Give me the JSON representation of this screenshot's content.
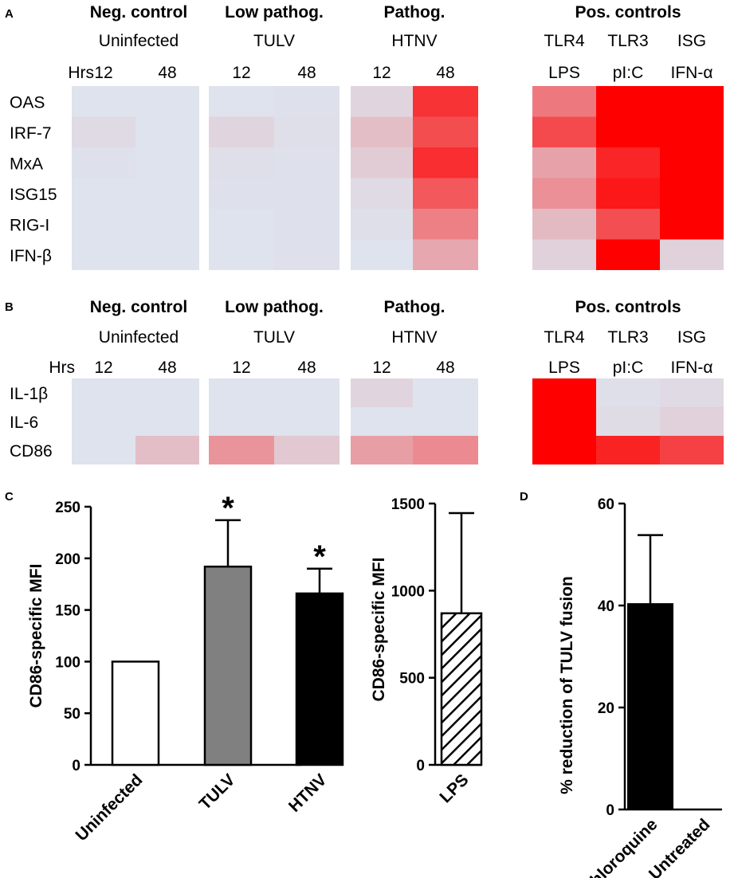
{
  "chart_data": [
    {
      "panel": "A",
      "type": "heatmap",
      "columns": [
        {
          "group": "Neg. control",
          "condition": "Uninfected",
          "hrs": [
            "12",
            "48"
          ]
        },
        {
          "group": "Low pathog.",
          "condition": "TULV",
          "hrs": [
            "12",
            "48"
          ]
        },
        {
          "group": "Pathog.",
          "condition": "HTNV",
          "hrs": [
            "12",
            "48"
          ]
        },
        {
          "group": "Pos. controls",
          "receptors": [
            "TLR4",
            "TLR3",
            "ISG"
          ],
          "stimuli": [
            "LPS",
            "pI:C",
            "IFN-α"
          ]
        }
      ],
      "hrs_label": "Hrs",
      "rows": [
        "OAS",
        "IRF-7",
        "MxA",
        "ISG15",
        "RIG-I",
        "IFN-β"
      ],
      "values": [
        [
          0.02,
          0.02,
          0.02,
          0.03,
          0.08,
          0.78,
          0.48,
          1.0,
          1.0
        ],
        [
          0.06,
          0.02,
          0.08,
          0.04,
          0.18,
          0.67,
          0.68,
          1.0,
          1.0
        ],
        [
          0.03,
          0.02,
          0.04,
          0.03,
          0.12,
          0.8,
          0.3,
          0.84,
          1.0
        ],
        [
          0.02,
          0.02,
          0.03,
          0.03,
          0.06,
          0.62,
          0.38,
          0.9,
          1.0
        ],
        [
          0.02,
          0.02,
          0.02,
          0.03,
          0.04,
          0.45,
          0.2,
          0.66,
          1.0
        ],
        [
          0.02,
          0.02,
          0.02,
          0.03,
          0.02,
          0.28,
          0.1,
          1.0,
          0.1
        ]
      ]
    },
    {
      "panel": "B",
      "type": "heatmap",
      "columns": [
        {
          "group": "Neg. control",
          "condition": "Uninfected",
          "hrs": [
            "12",
            "48"
          ]
        },
        {
          "group": "Low pathog.",
          "condition": "TULV",
          "hrs": [
            "12",
            "48"
          ]
        },
        {
          "group": "Pathog.",
          "condition": "HTNV",
          "hrs": [
            "12",
            "48"
          ]
        },
        {
          "group": "Pos. controls",
          "receptors": [
            "TLR4",
            "TLR3",
            "ISG"
          ],
          "stimuli": [
            "LPS",
            "pI:C",
            "IFN-α"
          ]
        }
      ],
      "hrs_label": "Hrs",
      "rows": [
        "IL-1β",
        "IL-6",
        "CD86"
      ],
      "values": [
        [
          0.02,
          0.02,
          0.02,
          0.02,
          0.08,
          0.02,
          1.0,
          0.04,
          0.06
        ],
        [
          0.02,
          0.02,
          0.02,
          0.02,
          0.02,
          0.02,
          1.0,
          0.05,
          0.1
        ],
        [
          0.02,
          0.18,
          0.36,
          0.14,
          0.32,
          0.4,
          1.0,
          0.85,
          0.72
        ]
      ]
    },
    {
      "panel": "C",
      "type": "bar",
      "ylabel": "CD86-specific MFI",
      "categories": [
        "Uninfected",
        "TULV",
        "HTNV"
      ],
      "values": [
        100,
        192,
        166
      ],
      "errors": [
        0,
        45,
        24
      ],
      "fills": [
        "#ffffff",
        "#808080",
        "#000000"
      ],
      "significance": [
        "",
        "*",
        "*"
      ],
      "ylim": [
        0,
        250
      ],
      "yticks": [
        "0",
        "50",
        "100",
        "150",
        "200",
        "250"
      ]
    },
    {
      "panel": "",
      "type": "bar",
      "ylabel": "CD86-specific MFI",
      "categories": [
        "LPS"
      ],
      "values": [
        870
      ],
      "errors": [
        575
      ],
      "fill_pattern": "diagonal-hatch",
      "ylim": [
        0,
        1500
      ],
      "yticks": [
        "0",
        "500",
        "1000",
        "1500"
      ]
    },
    {
      "panel": "D",
      "type": "bar",
      "ylabel": "% reduction of TULV fusion",
      "categories": [
        "Chloroquine",
        "Untreated"
      ],
      "values": [
        40.3,
        0
      ],
      "errors": [
        13.5,
        0
      ],
      "ylim": [
        0,
        60
      ],
      "yticks": [
        "0",
        "20",
        "40",
        "60"
      ]
    }
  ],
  "colors": {
    "low": "#dde8f2",
    "high": "#ff0000",
    "axis": "#000000"
  }
}
